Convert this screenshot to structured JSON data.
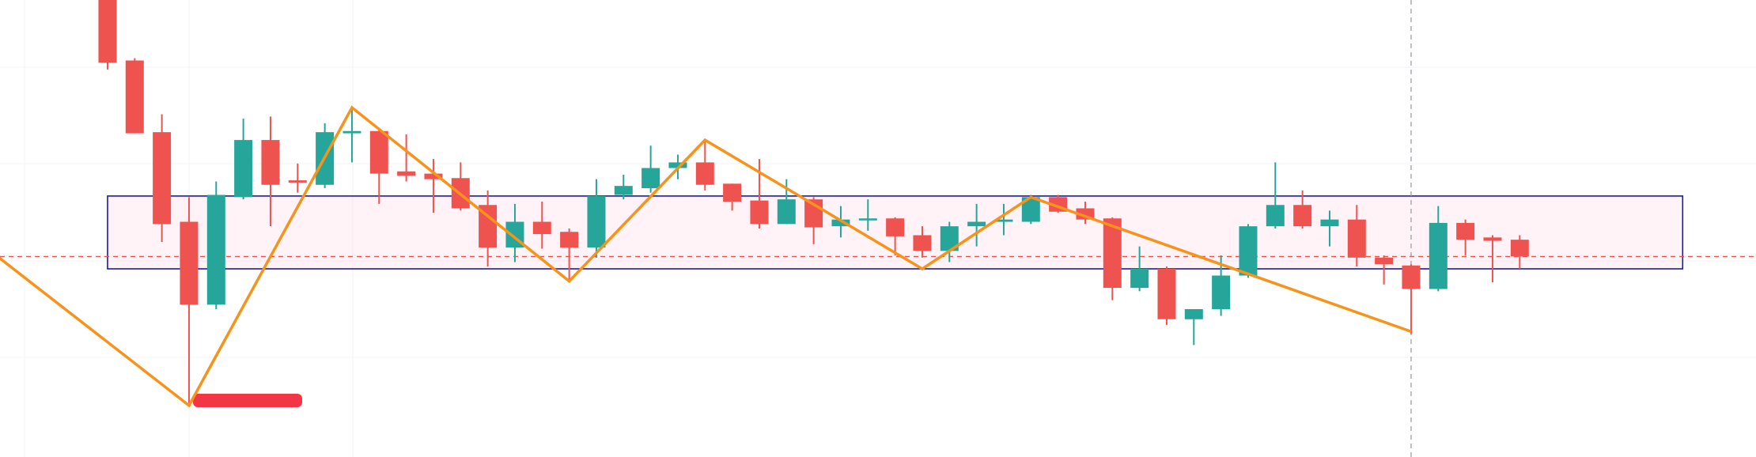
{
  "chart_data": {
    "type": "candlestick",
    "categories": [
      null,
      null,
      null,
      null,
      null,
      null,
      null,
      null,
      null,
      null,
      null,
      null,
      null,
      null,
      null,
      null,
      null,
      null,
      null,
      null,
      null,
      null,
      null,
      null,
      null,
      null,
      null,
      null,
      null,
      null,
      null,
      null,
      null,
      null,
      null,
      null,
      null,
      null,
      null,
      null,
      null,
      null,
      null,
      null,
      null,
      null,
      null,
      null,
      null,
      null,
      null,
      null,
      null
    ],
    "open": [
      408,
      354,
      290,
      210,
      136,
      232,
      283,
      247,
      243,
      289,
      291,
      255,
      253,
      249,
      225,
      187,
      210,
      201,
      187,
      234,
      240,
      258,
      263,
      244,
      229,
      208,
      230,
      206,
      212,
      213,
      198,
      184,
      206,
      210,
      210,
      232,
      222,
      213,
      151,
      168,
      123,
      132,
      162,
      206,
      225,
      206,
      212,
      178,
      171,
      150,
      209,
      196,
      194
    ],
    "high": [
      418,
      356,
      306,
      232,
      246,
      302,
      304,
      262,
      298,
      312,
      294,
      288,
      266,
      263,
      238,
      226,
      228,
      204,
      248,
      252,
      278,
      270,
      284,
      244,
      266,
      248,
      232,
      224,
      230,
      214,
      206,
      210,
      226,
      226,
      234,
      234,
      228,
      214,
      188,
      170,
      132,
      180,
      208,
      263,
      238,
      220,
      225,
      180,
      172,
      224,
      212,
      198,
      198
    ],
    "low": [
      346,
      289,
      192,
      48,
      132,
      230,
      206,
      236,
      240,
      263,
      226,
      246,
      218,
      220,
      170,
      174,
      186,
      158,
      178,
      230,
      236,
      248,
      238,
      220,
      204,
      208,
      190,
      196,
      202,
      180,
      178,
      174,
      188,
      198,
      208,
      218,
      208,
      140,
      148,
      118,
      100,
      126,
      160,
      204,
      204,
      188,
      170,
      154,
      110,
      148,
      180,
      156,
      168
    ],
    "close": [
      352,
      289,
      208,
      136,
      234,
      283,
      243,
      245,
      290,
      291,
      253,
      251,
      248,
      222,
      187,
      210,
      199,
      187,
      233,
      242,
      258,
      263,
      243,
      228,
      208,
      230,
      205,
      212,
      213,
      197,
      184,
      206,
      210,
      212,
      232,
      219,
      212,
      151,
      168,
      123,
      132,
      162,
      206,
      225,
      206,
      212,
      178,
      172,
      150,
      209,
      194,
      193,
      179
    ],
    "up_color": "#26a69a",
    "down_color": "#ef5350",
    "xlim": [
      -3.96,
      60.7
    ],
    "ylim": [
      0,
      408
    ],
    "zigzag": {
      "color": "#f7931a",
      "x": [
        -4,
        3,
        9,
        17,
        22,
        30,
        34,
        48
      ],
      "values": [
        178,
        46,
        312,
        157,
        283,
        168,
        232,
        112
      ]
    },
    "zone": {
      "x": [
        0,
        58
      ],
      "values": [
        168,
        233
      ],
      "color": "#1a1aa8"
    },
    "price_line": {
      "value": 179,
      "color": "#ef5350"
    },
    "crosshair_x": 48
  }
}
